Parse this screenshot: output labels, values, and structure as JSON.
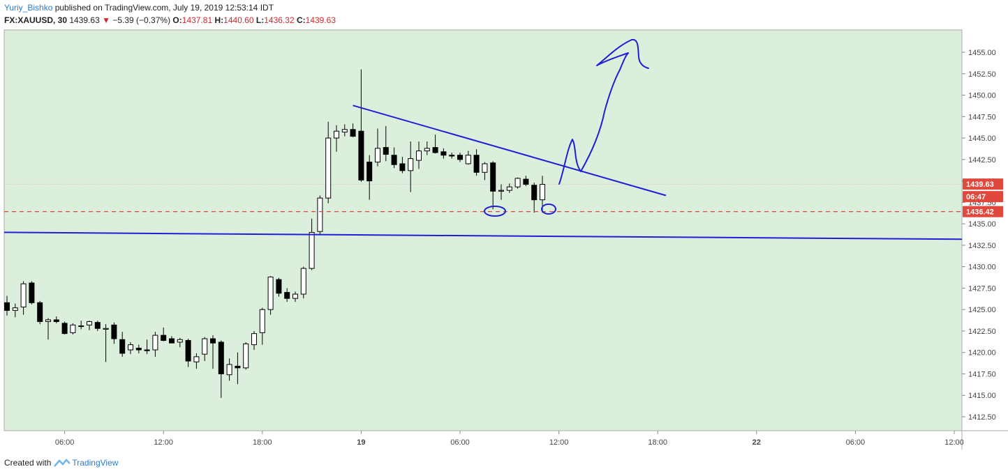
{
  "header": {
    "author": "Yuriy_Bishko",
    "published_text": " published on TradingView.com, July 19, 2019 12:53:14 IDT",
    "symbol": "FX:XAUUSD, 30",
    "last": "1439.63",
    "change": "−5.39 (−0.37%)",
    "o_label": "O:",
    "o_value": "1437.81",
    "h_label": "H:",
    "h_value": "1440.60",
    "l_label": "L:",
    "l_value": "1436.32",
    "c_label": "C:",
    "c_value": "1439.63"
  },
  "footer": {
    "created_with": "Created with",
    "brand": "TradingView"
  },
  "colors": {
    "background": "#dcefdc",
    "up_candle": "#ffffff",
    "down_candle": "#000000",
    "trendline": "#1f1fd6",
    "support_dashed": "#e0483c",
    "price_badge": "#e0483c"
  },
  "chart_data": {
    "type": "candlestick",
    "symbol": "FX:XAUUSD",
    "interval": "30",
    "ylim": [
      1410.0,
      1457.5
    ],
    "y_ticks": [
      "1455.00",
      "1452.50",
      "1450.00",
      "1447.50",
      "1445.00",
      "1442.50",
      "1440.00",
      "1437.50",
      "1435.00",
      "1432.50",
      "1430.00",
      "1427.50",
      "1425.00",
      "1422.50",
      "1420.00",
      "1417.50",
      "1415.00",
      "1412.50"
    ],
    "x_ticks": [
      "06:00",
      "12:00",
      "18:00",
      "19",
      "06:00",
      "12:00",
      "18:00",
      "22",
      "06:00",
      "12:00"
    ],
    "last_price_label": "1439.63",
    "countdown_label": "06:47",
    "dashed_level_label": "1436.42",
    "dashed_level": 1436.42,
    "candles": [
      {
        "o": 1425.8,
        "h": 1426.6,
        "l": 1424.3,
        "c": 1424.9
      },
      {
        "o": 1424.9,
        "h": 1425.7,
        "l": 1424.1,
        "c": 1425.2
      },
      {
        "o": 1425.3,
        "h": 1428.3,
        "l": 1424.4,
        "c": 1428.0
      },
      {
        "o": 1428.1,
        "h": 1428.3,
        "l": 1425.6,
        "c": 1425.8
      },
      {
        "o": 1425.8,
        "h": 1426.0,
        "l": 1423.3,
        "c": 1423.6
      },
      {
        "o": 1423.6,
        "h": 1424.0,
        "l": 1421.5,
        "c": 1423.8
      },
      {
        "o": 1423.8,
        "h": 1424.2,
        "l": 1423.4,
        "c": 1423.6
      },
      {
        "o": 1423.4,
        "h": 1423.6,
        "l": 1422.1,
        "c": 1422.2
      },
      {
        "o": 1422.3,
        "h": 1423.4,
        "l": 1422.1,
        "c": 1423.2
      },
      {
        "o": 1423.1,
        "h": 1423.7,
        "l": 1422.7,
        "c": 1423.1
      },
      {
        "o": 1423.2,
        "h": 1423.7,
        "l": 1422.6,
        "c": 1423.6
      },
      {
        "o": 1423.5,
        "h": 1423.7,
        "l": 1422.5,
        "c": 1422.8
      },
      {
        "o": 1422.7,
        "h": 1423.3,
        "l": 1418.9,
        "c": 1422.8
      },
      {
        "o": 1423.2,
        "h": 1423.5,
        "l": 1421.0,
        "c": 1421.6
      },
      {
        "o": 1421.5,
        "h": 1422.4,
        "l": 1419.5,
        "c": 1419.9
      },
      {
        "o": 1420.3,
        "h": 1421.2,
        "l": 1419.8,
        "c": 1420.9
      },
      {
        "o": 1420.5,
        "h": 1420.9,
        "l": 1419.9,
        "c": 1420.3
      },
      {
        "o": 1420.3,
        "h": 1421.5,
        "l": 1419.8,
        "c": 1420.2
      },
      {
        "o": 1420.3,
        "h": 1422.4,
        "l": 1419.5,
        "c": 1422.0
      },
      {
        "o": 1422.0,
        "h": 1422.9,
        "l": 1421.3,
        "c": 1421.4
      },
      {
        "o": 1421.6,
        "h": 1421.9,
        "l": 1421.1,
        "c": 1421.1
      },
      {
        "o": 1421.2,
        "h": 1421.7,
        "l": 1420.6,
        "c": 1421.5
      },
      {
        "o": 1421.4,
        "h": 1421.6,
        "l": 1418.3,
        "c": 1419.0
      },
      {
        "o": 1418.9,
        "h": 1419.9,
        "l": 1418.1,
        "c": 1419.5
      },
      {
        "o": 1419.8,
        "h": 1421.8,
        "l": 1419.0,
        "c": 1421.6
      },
      {
        "o": 1421.6,
        "h": 1422.0,
        "l": 1418.1,
        "c": 1421.1
      },
      {
        "o": 1421.2,
        "h": 1421.4,
        "l": 1414.7,
        "c": 1417.5
      },
      {
        "o": 1417.4,
        "h": 1419.3,
        "l": 1416.7,
        "c": 1418.6
      },
      {
        "o": 1418.4,
        "h": 1420.0,
        "l": 1416.3,
        "c": 1418.2
      },
      {
        "o": 1418.2,
        "h": 1421.2,
        "l": 1418.0,
        "c": 1421.0
      },
      {
        "o": 1420.9,
        "h": 1422.5,
        "l": 1420.3,
        "c": 1422.2
      },
      {
        "o": 1422.3,
        "h": 1425.2,
        "l": 1420.9,
        "c": 1425.0
      },
      {
        "o": 1425.0,
        "h": 1428.9,
        "l": 1424.4,
        "c": 1428.8
      },
      {
        "o": 1428.5,
        "h": 1428.7,
        "l": 1426.5,
        "c": 1426.9
      },
      {
        "o": 1427.0,
        "h": 1427.5,
        "l": 1425.9,
        "c": 1426.3
      },
      {
        "o": 1426.3,
        "h": 1427.1,
        "l": 1425.9,
        "c": 1426.8
      },
      {
        "o": 1426.8,
        "h": 1430.0,
        "l": 1426.3,
        "c": 1429.8
      },
      {
        "o": 1429.8,
        "h": 1435.6,
        "l": 1429.6,
        "c": 1434.0
      },
      {
        "o": 1434.1,
        "h": 1438.3,
        "l": 1433.8,
        "c": 1438.0
      },
      {
        "o": 1438.0,
        "h": 1446.9,
        "l": 1437.4,
        "c": 1445.0
      },
      {
        "o": 1445.0,
        "h": 1446.5,
        "l": 1443.4,
        "c": 1445.8
      },
      {
        "o": 1445.7,
        "h": 1446.6,
        "l": 1445.2,
        "c": 1446.0
      },
      {
        "o": 1446.0,
        "h": 1446.7,
        "l": 1445.1,
        "c": 1445.2
      },
      {
        "o": 1445.8,
        "h": 1453.0,
        "l": 1439.9,
        "c": 1440.1
      },
      {
        "o": 1442.2,
        "h": 1443.0,
        "l": 1437.8,
        "c": 1440.0
      },
      {
        "o": 1442.2,
        "h": 1446.1,
        "l": 1441.7,
        "c": 1443.8
      },
      {
        "o": 1443.9,
        "h": 1446.4,
        "l": 1442.3,
        "c": 1443.1
      },
      {
        "o": 1443.0,
        "h": 1443.9,
        "l": 1441.5,
        "c": 1441.9
      },
      {
        "o": 1442.0,
        "h": 1442.8,
        "l": 1440.9,
        "c": 1441.2
      },
      {
        "o": 1441.2,
        "h": 1444.6,
        "l": 1438.7,
        "c": 1442.6
      },
      {
        "o": 1442.4,
        "h": 1444.6,
        "l": 1441.4,
        "c": 1443.5
      },
      {
        "o": 1443.5,
        "h": 1444.6,
        "l": 1443.0,
        "c": 1443.8
      },
      {
        "o": 1443.9,
        "h": 1445.4,
        "l": 1443.2,
        "c": 1443.3
      },
      {
        "o": 1443.4,
        "h": 1443.8,
        "l": 1442.6,
        "c": 1443.0
      },
      {
        "o": 1443.0,
        "h": 1443.3,
        "l": 1442.6,
        "c": 1442.9
      },
      {
        "o": 1443.0,
        "h": 1443.3,
        "l": 1442.2,
        "c": 1442.5
      },
      {
        "o": 1442.0,
        "h": 1443.5,
        "l": 1441.9,
        "c": 1443.0
      },
      {
        "o": 1443.0,
        "h": 1443.7,
        "l": 1440.6,
        "c": 1441.0
      },
      {
        "o": 1441.0,
        "h": 1442.2,
        "l": 1440.1,
        "c": 1442.0
      },
      {
        "o": 1442.1,
        "h": 1442.3,
        "l": 1436.7,
        "c": 1438.8
      },
      {
        "o": 1438.8,
        "h": 1439.6,
        "l": 1437.8,
        "c": 1438.9
      },
      {
        "o": 1438.9,
        "h": 1439.7,
        "l": 1438.6,
        "c": 1439.3
      },
      {
        "o": 1439.3,
        "h": 1440.4,
        "l": 1439.1,
        "c": 1440.3
      },
      {
        "o": 1440.2,
        "h": 1440.6,
        "l": 1439.4,
        "c": 1439.6
      },
      {
        "o": 1439.5,
        "h": 1439.8,
        "l": 1436.3,
        "c": 1437.8
      },
      {
        "o": 1437.8,
        "h": 1440.6,
        "l": 1436.3,
        "c": 1439.6
      }
    ],
    "annotations": {
      "descending_trendline": [
        {
          "t": 42,
          "p": 1448.8
        },
        {
          "t": 80,
          "p": 1438.3
        }
      ],
      "horizontal_support": [
        {
          "t": -1,
          "p": 1434.0
        },
        {
          "t": 115,
          "p": 1433.2
        }
      ],
      "projection_arrow": "hand-drawn upward arrow",
      "circled_lows": "two hand-drawn circles around wick lows"
    }
  }
}
